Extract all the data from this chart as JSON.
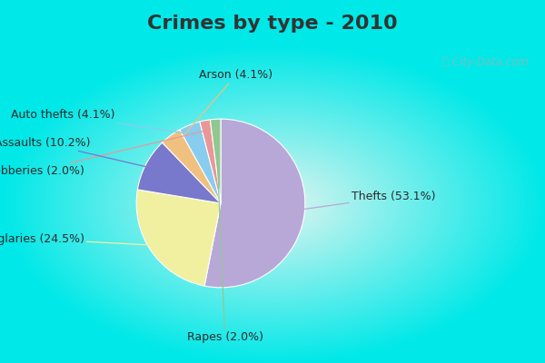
{
  "title": "Crimes by type - 2010",
  "labels": [
    "Thefts",
    "Burglaries",
    "Assaults",
    "Arson",
    "Auto thefts",
    "Robberies",
    "Rapes"
  ],
  "values": [
    53.1,
    24.5,
    10.2,
    4.1,
    4.1,
    2.0,
    2.0
  ],
  "colors": [
    "#b8a8d8",
    "#f0f0a0",
    "#7878cc",
    "#f0c080",
    "#88ccee",
    "#e89898",
    "#90c890"
  ],
  "title_bg": "#00e8e8",
  "title_color": "#333333",
  "title_fontsize": 16,
  "label_fontsize": 9,
  "figsize": [
    6.0,
    4.0
  ],
  "dpi": 100,
  "border_color": "#00e8e8",
  "border_width": 8
}
